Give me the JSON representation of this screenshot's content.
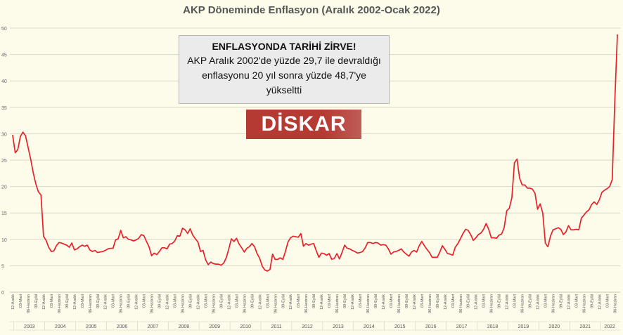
{
  "chart_data": {
    "type": "line",
    "title": "AKP Döneminde Enflasyon (Aralık 2002-Ocak 2022)",
    "ylim": [
      0,
      50
    ],
    "yticks": [
      0,
      5,
      10,
      15,
      20,
      25,
      30,
      35,
      40,
      45,
      50
    ],
    "grid": true,
    "line_color": "#e8202a",
    "years": [
      "2003",
      "2004",
      "2005",
      "2006",
      "2007",
      "2008",
      "2009",
      "2010",
      "2011",
      "2012",
      "2013",
      "2014",
      "2015",
      "2016",
      "2017",
      "2018",
      "2019",
      "2020",
      "2021",
      "2022"
    ],
    "x_tick_labels": [
      "12-Aralık",
      "03-Mart",
      "06-Haziran",
      "09-Eylül"
    ],
    "series": [
      {
        "x_start": "2002-12",
        "values": [
          29.7,
          26.4,
          27.0,
          29.5,
          30.3,
          29.6,
          27.4,
          25.2,
          22.6,
          20.5,
          19.0,
          18.4,
          10.6,
          9.8,
          8.5,
          7.7,
          7.8,
          8.8,
          9.4,
          9.3,
          9.1,
          8.9,
          8.5,
          9.3,
          8.0,
          8.2,
          8.6,
          8.9,
          8.7,
          8.9,
          8.0,
          7.7,
          7.9,
          7.5,
          7.6,
          7.7,
          7.9,
          8.2,
          8.3,
          8.3,
          9.9,
          10.1,
          11.7,
          10.3,
          10.5,
          10.0,
          9.9,
          9.7,
          9.9,
          10.2,
          10.9,
          10.7,
          9.6,
          8.6,
          6.9,
          7.4,
          7.1,
          7.7,
          8.4,
          8.4,
          8.2,
          9.1,
          9.2,
          9.7,
          10.7,
          10.6,
          12.1,
          11.8,
          11.1,
          12.0,
          10.8,
          10.1,
          9.5,
          7.7,
          7.9,
          6.1,
          5.2,
          5.7,
          5.4,
          5.3,
          5.3,
          5.1,
          5.5,
          6.5,
          8.2,
          10.1,
          9.6,
          10.2,
          9.1,
          8.4,
          7.6,
          8.3,
          8.6,
          9.2,
          8.6,
          7.3,
          6.4,
          4.9,
          4.2,
          4.0,
          4.3,
          7.2,
          6.2,
          6.2,
          6.5,
          6.2,
          7.7,
          9.5,
          10.3,
          10.6,
          10.5,
          10.4,
          11.1,
          8.7,
          9.2,
          8.9,
          9.1,
          9.2,
          7.8,
          6.6,
          7.4,
          7.3,
          7.0,
          7.3,
          6.2,
          6.4,
          7.3,
          6.3,
          7.5,
          8.9,
          8.3,
          8.2,
          7.9,
          7.7,
          7.4,
          7.5,
          7.7,
          8.4,
          9.4,
          9.4,
          9.2,
          9.4,
          9.3,
          8.9,
          9.0,
          8.9,
          8.2,
          7.2,
          7.6,
          7.7,
          7.9,
          8.2,
          7.6,
          7.2,
          6.8,
          7.6,
          7.9,
          7.6,
          8.8,
          9.6,
          8.8,
          8.1,
          7.5,
          6.6,
          6.6,
          6.6,
          7.6,
          8.8,
          8.1,
          7.3,
          7.2,
          7.0,
          8.5,
          9.2,
          10.1,
          11.1,
          11.9,
          11.7,
          10.9,
          9.8,
          10.3,
          10.9,
          11.2,
          11.9,
          13.0,
          11.9,
          10.3,
          10.3,
          10.2,
          10.8,
          11.0,
          12.2,
          15.4,
          15.9,
          17.9,
          24.5,
          25.2,
          21.6,
          20.3,
          20.3,
          19.7,
          19.7,
          19.5,
          18.7,
          15.7,
          16.7,
          15.0,
          9.3,
          8.6,
          10.6,
          11.8,
          12.0,
          12.2,
          11.9,
          10.9,
          11.4,
          12.6,
          11.8,
          11.8,
          11.9,
          11.8,
          14.0,
          14.6,
          15.2,
          15.6,
          16.6,
          17.1,
          16.6,
          17.5,
          18.9,
          19.3,
          19.6,
          20.0,
          21.3,
          36.1,
          48.7
        ]
      }
    ]
  },
  "callout": {
    "headline": "ENFLASYONDA TARİHİ ZİRVE!",
    "body": "AKP Aralık 2002'de yüzde 29,7 ile devraldığı enflasyonu 20 yıl sonra yüzde 48,7'ye yükseltti"
  },
  "logo": {
    "text": "DİSKAR"
  }
}
